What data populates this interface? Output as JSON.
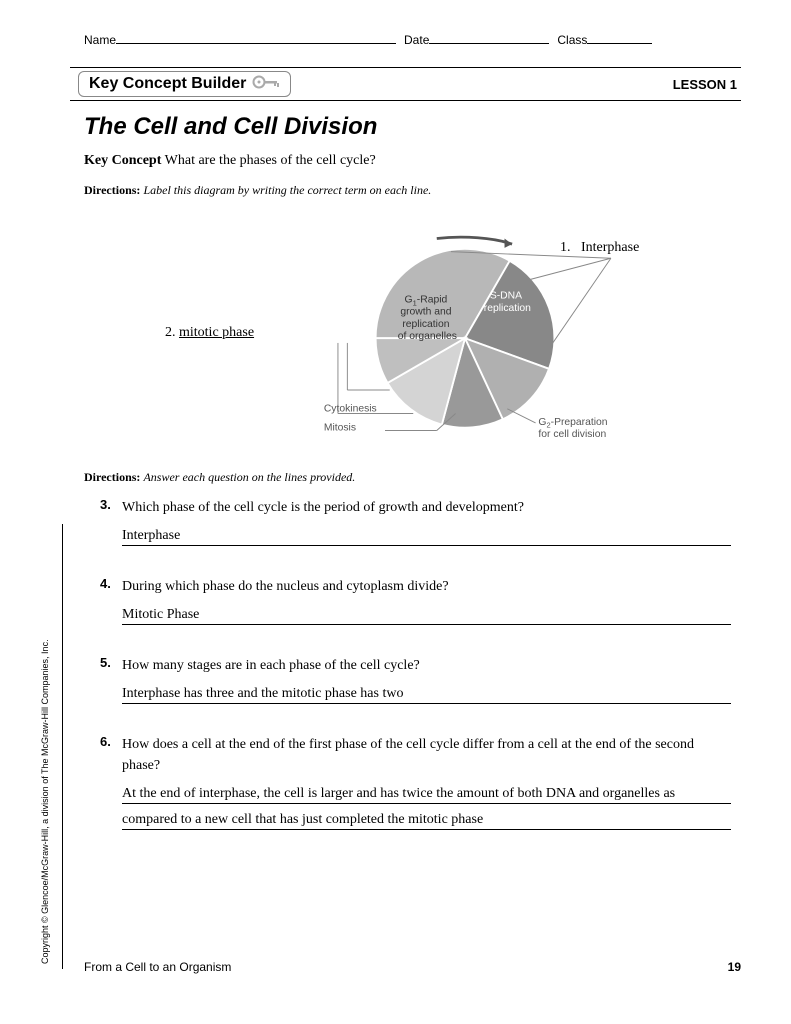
{
  "header": {
    "name_label": "Name",
    "date_label": "Date",
    "class_label": "Class"
  },
  "section": {
    "tab_label": "Key Concept Builder",
    "lesson_label": "LESSON 1"
  },
  "title": "The Cell and Cell Division",
  "key_concept": {
    "label": "Key Concept",
    "text": "What are the phases of the cell cycle?"
  },
  "directions1": {
    "label": "Directions:",
    "text": "Label this diagram by writing the correct term on each line."
  },
  "diagram": {
    "labels": {
      "l1_num": "1.",
      "l1_text": "Interphase",
      "l2_num": "2.",
      "l2_text": "mitotic phase"
    },
    "pie": {
      "slices": [
        {
          "start": -90,
          "end": 30,
          "color": "#b8b8b8",
          "lines": [
            "G",
            "-Rapid",
            "growth and",
            "replication",
            "of organelles"
          ],
          "sub": "1"
        },
        {
          "start": 30,
          "end": 110,
          "color": "#888888",
          "lines": [
            "S-DNA",
            "replication"
          ]
        },
        {
          "start": 110,
          "end": 155,
          "color": "#b0b0b0"
        },
        {
          "start": 155,
          "end": 195,
          "color": "#999999"
        },
        {
          "start": 195,
          "end": 240,
          "color": "#d4d4d4"
        },
        {
          "start": 240,
          "end": 270,
          "color": "#bfbfbf"
        }
      ],
      "ext_labels": {
        "cytokinesis": "Cytokinesis",
        "mitosis": "Mitosis",
        "g2": [
          "G",
          "-Preparation",
          "for cell division"
        ],
        "g2_sub": "2"
      }
    }
  },
  "directions2": {
    "label": "Directions:",
    "text": "Answer each question on the lines provided."
  },
  "questions": [
    {
      "num": "3.",
      "prompt": "Which phase of the cell cycle is the period of growth and development?",
      "answers": [
        "Interphase"
      ]
    },
    {
      "num": "4.",
      "prompt": "During which phase do the nucleus and cytoplasm divide?",
      "answers": [
        "Mitotic Phase"
      ]
    },
    {
      "num": "5.",
      "prompt": "How many stages are in each phase of the cell cycle?",
      "answers": [
        "Interphase has three and the mitotic phase has two"
      ]
    },
    {
      "num": "6.",
      "prompt": "How does a cell at the end of the first phase of the cell cycle differ from a cell at the end of the second phase?",
      "answers": [
        "At the end of interphase, the cell is larger and has twice the amount of both DNA and organelles as",
        "compared to a new cell that has just completed the mitotic phase"
      ]
    }
  ],
  "footer": {
    "left": "From a Cell to an Organism",
    "page": "19"
  },
  "copyright": "Copyright © Glencoe/McGraw-Hill, a division of The McGraw-Hill Companies, Inc."
}
